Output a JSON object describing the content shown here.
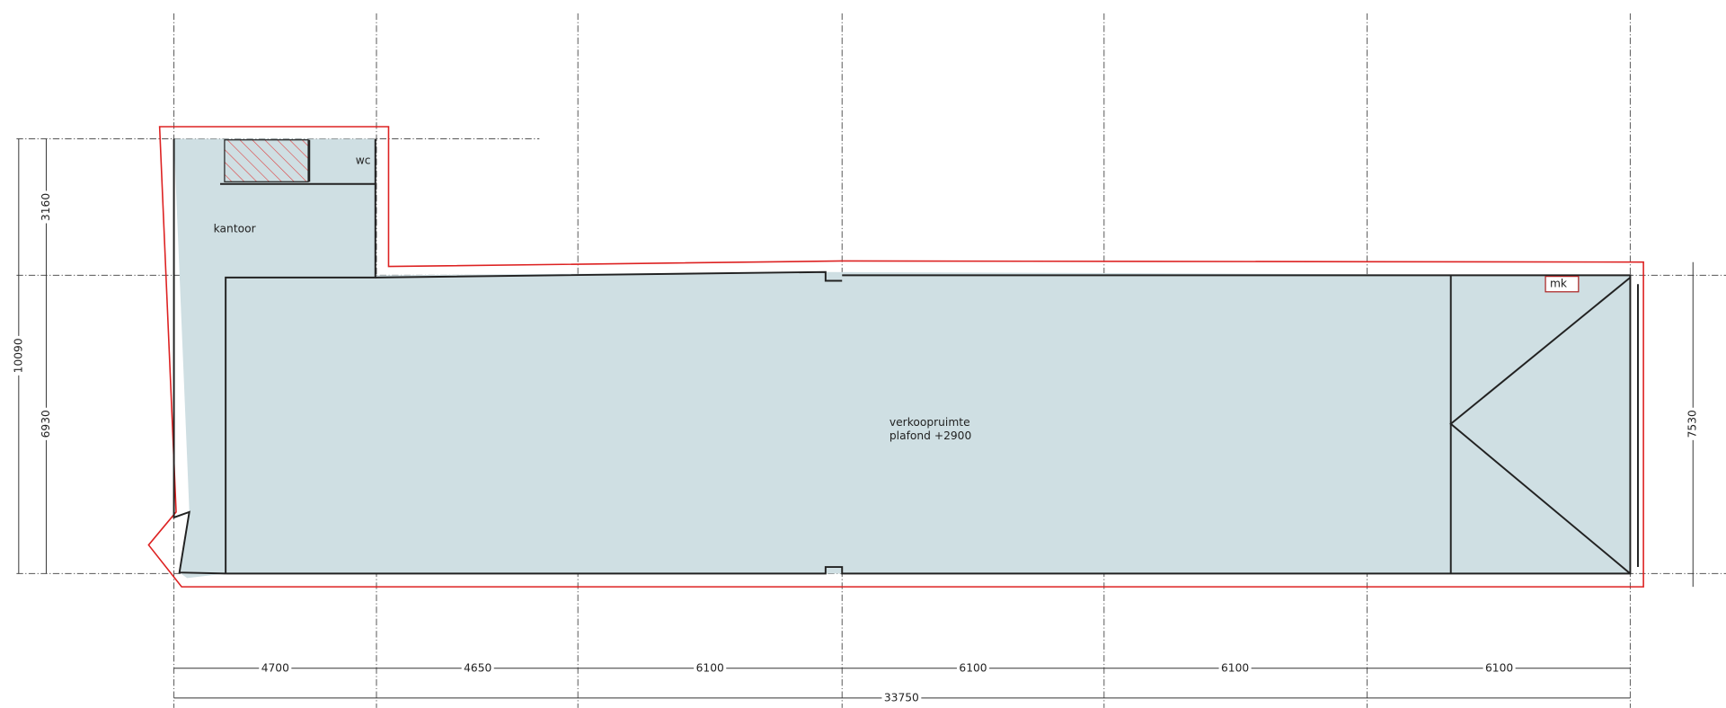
{
  "rooms": [
    {
      "label": "wc"
    },
    {
      "label": "kantoor"
    },
    {
      "label": "verkoopruimte"
    },
    {
      "label": "plafond +2900"
    },
    {
      "label": "mk"
    }
  ],
  "dimensions": {
    "bottom": [
      4700,
      4650,
      6100,
      6100,
      6100,
      6100
    ],
    "overall": 33750,
    "left": [
      3160,
      6930
    ],
    "left_total": 10090,
    "right": 7530
  }
}
